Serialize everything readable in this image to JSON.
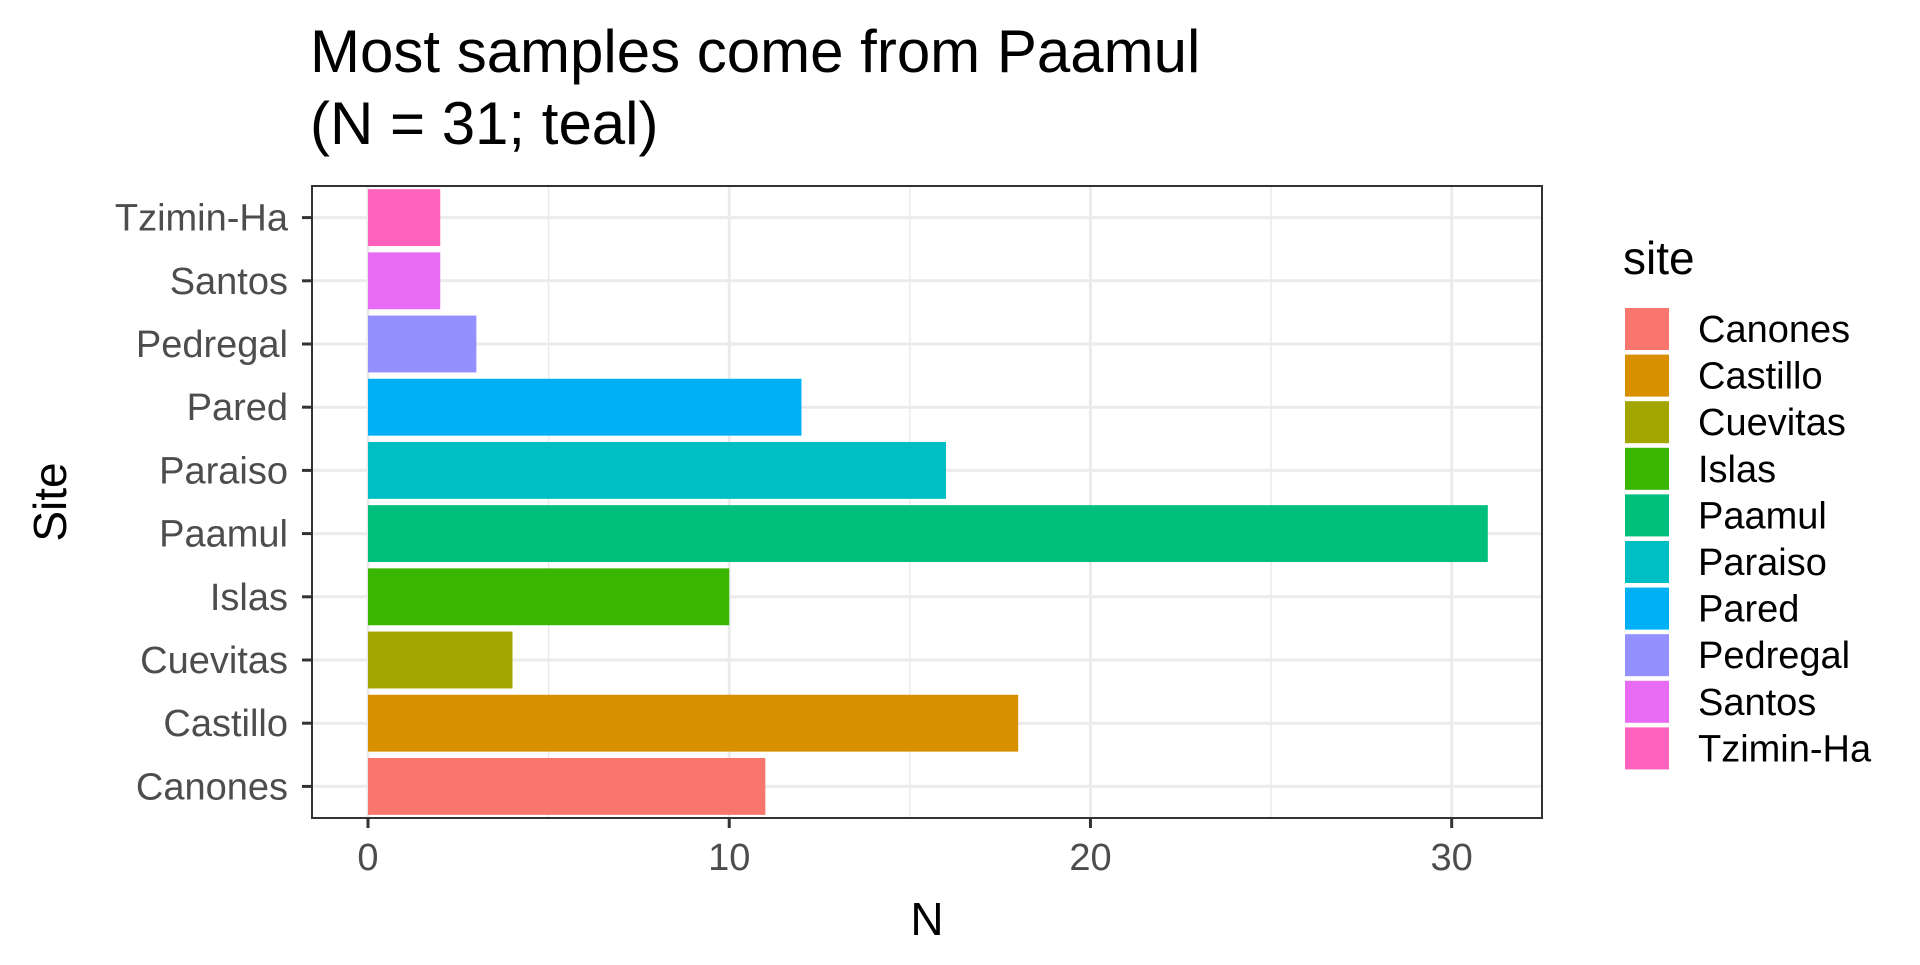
{
  "chart_data": {
    "type": "bar",
    "orientation": "horizontal",
    "title_line1": "Most samples come from Paamul",
    "title_line2": "(N = 31; teal)",
    "xlabel": "N",
    "ylabel": "Site",
    "xlim": [
      0,
      32.5
    ],
    "x_ticks": [
      0,
      10,
      20,
      30
    ],
    "grid": true,
    "legend_title": "site",
    "legend_position": "right",
    "categories": [
      "Canones",
      "Castillo",
      "Cuevitas",
      "Islas",
      "Paamul",
      "Paraiso",
      "Pared",
      "Pedregal",
      "Santos",
      "Tzimin-Ha"
    ],
    "values": [
      11,
      18,
      4,
      10,
      31,
      16,
      12,
      3,
      2,
      2
    ],
    "colors": [
      "#F8766D",
      "#D89000",
      "#A3A500",
      "#39B600",
      "#00BF7D",
      "#00BFC4",
      "#00B0F6",
      "#9590FF",
      "#E76BF3",
      "#FF62BC"
    ]
  }
}
